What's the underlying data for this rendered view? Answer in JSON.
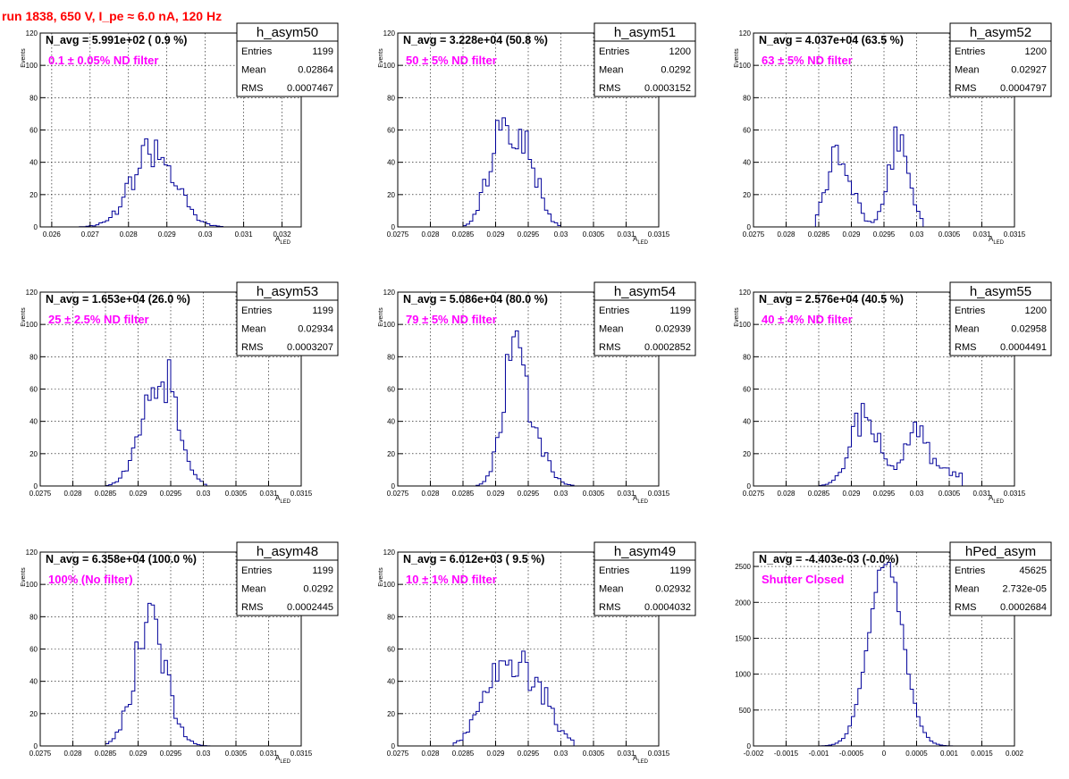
{
  "run_title": "run 1838,   650 V, I_pe ≈ 6.0 nA, 120 Hz",
  "colors": {
    "title": "#ff0000",
    "note": "#ff00ff",
    "hist": "#000099",
    "grid": "#000000",
    "frame": "#000000"
  },
  "chart_data": [
    {
      "type": "histogram",
      "name": "h_asym50",
      "navg": "N_avg = 5.991e+02 ( 0.9 %)",
      "note": "0.1 ± 0.05% ND filter",
      "stats": [
        [
          "Entries",
          "1199"
        ],
        [
          "Mean",
          "0.02864"
        ],
        [
          "RMS",
          "0.0007467"
        ]
      ],
      "ylabel": "Events",
      "xlabel": "A",
      "xlabel_sub": "LED",
      "xlim": [
        0.0257,
        0.0325
      ],
      "ylim": [
        0,
        120
      ],
      "xticks": [
        0.026,
        0.027,
        0.028,
        0.029,
        0.03,
        0.031,
        0.032
      ],
      "xticklabels": [
        "0.026",
        "0.027",
        "0.028",
        "0.029",
        "0.03",
        "0.031",
        "0.032"
      ],
      "yticks": [
        0,
        20,
        40,
        60,
        80,
        100,
        120
      ],
      "yticklabels": [
        "0",
        "20",
        "40",
        "60",
        "80",
        "100",
        "120"
      ],
      "shape": {
        "peaks": [
          [
            0.02865,
            0.00055,
            48,
            0.3
          ]
        ],
        "range": [
          0.0267,
          0.0305
        ]
      }
    },
    {
      "type": "histogram",
      "name": "h_asym51",
      "navg": "N_avg = 3.228e+04 (50.8 %)",
      "note": "50 ± 5% ND filter",
      "stats": [
        [
          "Entries",
          "1200"
        ],
        [
          "Mean",
          "0.0292"
        ],
        [
          "RMS",
          "0.0003152"
        ]
      ],
      "ylabel": "Events",
      "xlabel": "A",
      "xlabel_sub": "LED",
      "xlim": [
        0.0275,
        0.0315
      ],
      "ylim": [
        0,
        120
      ],
      "xticks": [
        0.0275,
        0.028,
        0.0285,
        0.029,
        0.0295,
        0.03,
        0.0305,
        0.031,
        0.0315
      ],
      "xticklabels": [
        "0.0275",
        "0.028",
        "0.0285",
        "0.029",
        "0.0295",
        "0.03",
        "0.0305",
        "0.031",
        "0.0315"
      ],
      "yticks": [
        0,
        20,
        40,
        60,
        80,
        100,
        120
      ],
      "yticklabels": [
        "0",
        "20",
        "40",
        "60",
        "80",
        "100",
        "120"
      ],
      "shape": {
        "peaks": [
          [
            0.02905,
            0.00018,
            54,
            0.3
          ],
          [
            0.02948,
            0.00018,
            46,
            0.3
          ]
        ],
        "range": [
          0.0285,
          0.03
        ]
      }
    },
    {
      "type": "histogram",
      "name": "h_asym52",
      "navg": "N_avg = 4.037e+04 (63.5 %)",
      "note": "63 ± 5% ND filter",
      "stats": [
        [
          "Entries",
          "1200"
        ],
        [
          "Mean",
          "0.02927"
        ],
        [
          "RMS",
          "0.0004797"
        ]
      ],
      "ylabel": "Events",
      "xlabel": "A",
      "xlabel_sub": "LED",
      "xlim": [
        0.0275,
        0.0315
      ],
      "ylim": [
        0,
        120
      ],
      "xticks": [
        0.0275,
        0.028,
        0.0285,
        0.029,
        0.0295,
        0.03,
        0.0305,
        0.031,
        0.0315
      ],
      "xticklabels": [
        "0.0275",
        "0.028",
        "0.0285",
        "0.029",
        "0.0295",
        "0.03",
        "0.0305",
        "0.031",
        "0.0315"
      ],
      "yticks": [
        0,
        20,
        40,
        60,
        80,
        100,
        120
      ],
      "yticklabels": [
        "0",
        "20",
        "40",
        "60",
        "80",
        "100",
        "120"
      ],
      "shape": {
        "peaks": [
          [
            0.02882,
            0.00018,
            50,
            0.25
          ],
          [
            0.02973,
            0.00016,
            53,
            0.25
          ]
        ],
        "range": [
          0.02845,
          0.0301
        ]
      }
    },
    {
      "type": "histogram",
      "name": "h_asym53",
      "navg": "N_avg = 1.653e+04 (26.0 %)",
      "note": "25 ± 2.5% ND filter",
      "stats": [
        [
          "Entries",
          "1199"
        ],
        [
          "Mean",
          "0.02934"
        ],
        [
          "RMS",
          "0.0003207"
        ]
      ],
      "ylabel": "Events",
      "xlabel": "A",
      "xlabel_sub": "LED",
      "xlim": [
        0.0275,
        0.0315
      ],
      "ylim": [
        0,
        120
      ],
      "xticks": [
        0.0275,
        0.028,
        0.0285,
        0.029,
        0.0295,
        0.03,
        0.0305,
        0.031,
        0.0315
      ],
      "xticklabels": [
        "0.0275",
        "0.028",
        "0.0285",
        "0.029",
        "0.0295",
        "0.03",
        "0.0305",
        "0.031",
        "0.0315"
      ],
      "yticks": [
        0,
        20,
        40,
        60,
        80,
        100,
        120
      ],
      "yticklabels": [
        "0",
        "20",
        "40",
        "60",
        "80",
        "100",
        "120"
      ],
      "shape": {
        "peaks": [
          [
            0.02915,
            0.0002,
            46,
            0.3
          ],
          [
            0.02953,
            0.00018,
            52,
            0.3
          ]
        ],
        "range": [
          0.0285,
          0.03005
        ]
      }
    },
    {
      "type": "histogram",
      "name": "h_asym54",
      "navg": "N_avg = 5.086e+04 (80.0 %)",
      "note": "79 ± 5% ND filter",
      "stats": [
        [
          "Entries",
          "1199"
        ],
        [
          "Mean",
          "0.02939"
        ],
        [
          "RMS",
          "0.0002852"
        ]
      ],
      "ylabel": "Events",
      "xlabel": "A",
      "xlabel_sub": "LED",
      "xlim": [
        0.0275,
        0.0315
      ],
      "ylim": [
        0,
        120
      ],
      "xticks": [
        0.0275,
        0.028,
        0.0285,
        0.029,
        0.0295,
        0.03,
        0.0305,
        0.031,
        0.0315
      ],
      "xticklabels": [
        "0.0275",
        "0.028",
        "0.0285",
        "0.029",
        "0.0295",
        "0.03",
        "0.0305",
        "0.031",
        "0.0315"
      ],
      "yticks": [
        0,
        20,
        40,
        60,
        80,
        100,
        120
      ],
      "yticklabels": [
        "0",
        "20",
        "40",
        "60",
        "80",
        "100",
        "120"
      ],
      "shape": {
        "peaks": [
          [
            0.02927,
            0.00017,
            78,
            0.25
          ],
          [
            0.02962,
            0.0002,
            22,
            0.3
          ]
        ],
        "range": [
          0.0287,
          0.0302
        ]
      }
    },
    {
      "type": "histogram",
      "name": "h_asym55",
      "navg": "N_avg = 2.576e+04 (40.5 %)",
      "note": "40 ± 4% ND filter",
      "stats": [
        [
          "Entries",
          "1200"
        ],
        [
          "Mean",
          "0.02958"
        ],
        [
          "RMS",
          "0.0004491"
        ]
      ],
      "ylabel": "Events",
      "xlabel": "A",
      "xlabel_sub": "LED",
      "xlim": [
        0.0275,
        0.0315
      ],
      "ylim": [
        0,
        120
      ],
      "xticks": [
        0.0275,
        0.028,
        0.0285,
        0.029,
        0.0295,
        0.03,
        0.0305,
        0.031,
        0.0315
      ],
      "xticklabels": [
        "0.0275",
        "0.028",
        "0.0285",
        "0.029",
        "0.0295",
        "0.03",
        "0.0305",
        "0.031",
        "0.0315"
      ],
      "yticks": [
        0,
        20,
        40,
        60,
        80,
        100,
        120
      ],
      "yticklabels": [
        "0",
        "20",
        "40",
        "60",
        "80",
        "100",
        "120"
      ],
      "shape": {
        "peaks": [
          [
            0.02922,
            0.00022,
            44,
            0.3
          ],
          [
            0.03,
            0.00018,
            38,
            0.3
          ],
          [
            0.03055,
            0.0002,
            8,
            0.3
          ]
        ],
        "range": [
          0.0285,
          0.0307
        ]
      }
    },
    {
      "type": "histogram",
      "name": "h_asym48",
      "navg": "N_avg = 6.358e+04 (100.0 %)",
      "note": "100% (No filter)",
      "stats": [
        [
          "Entries",
          "1199"
        ],
        [
          "Mean",
          "0.0292"
        ],
        [
          "RMS",
          "0.0002445"
        ]
      ],
      "ylabel": "Events",
      "xlabel": "A",
      "xlabel_sub": "LED",
      "xlim": [
        0.0275,
        0.0315
      ],
      "ylim": [
        0,
        120
      ],
      "xticks": [
        0.0275,
        0.028,
        0.0285,
        0.029,
        0.0295,
        0.03,
        0.0305,
        0.031,
        0.0315
      ],
      "xticklabels": [
        "0.0275",
        "0.028",
        "0.0285",
        "0.029",
        "0.0295",
        "0.03",
        "0.0305",
        "0.031",
        "0.0315"
      ],
      "yticks": [
        0,
        20,
        40,
        60,
        80,
        100,
        120
      ],
      "yticklabels": [
        "0",
        "20",
        "40",
        "60",
        "80",
        "100",
        "120"
      ],
      "shape": {
        "peaks": [
          [
            0.02919,
            0.00024,
            80,
            0.25
          ]
        ],
        "range": [
          0.0285,
          0.0301
        ]
      }
    },
    {
      "type": "histogram",
      "name": "h_asym49",
      "navg": "N_avg = 6.012e+03 ( 9.5 %)",
      "note": "10 ± 1% ND filter",
      "stats": [
        [
          "Entries",
          "1199"
        ],
        [
          "Mean",
          "0.02932"
        ],
        [
          "RMS",
          "0.0004032"
        ]
      ],
      "ylabel": "Events",
      "xlabel": "A",
      "xlabel_sub": "LED",
      "xlim": [
        0.0275,
        0.0315
      ],
      "ylim": [
        0,
        120
      ],
      "xticks": [
        0.0275,
        0.028,
        0.0285,
        0.029,
        0.0295,
        0.03,
        0.0305,
        0.031,
        0.0315
      ],
      "xticklabels": [
        "0.0275",
        "0.028",
        "0.0285",
        "0.029",
        "0.0295",
        "0.03",
        "0.0305",
        "0.031",
        "0.0315"
      ],
      "yticks": [
        0,
        20,
        40,
        60,
        80,
        100,
        120
      ],
      "yticklabels": [
        "0",
        "20",
        "40",
        "60",
        "80",
        "100",
        "120"
      ],
      "shape": {
        "peaks": [
          [
            0.02905,
            0.00028,
            40,
            0.3
          ],
          [
            0.02955,
            0.00028,
            38,
            0.3
          ]
        ],
        "range": [
          0.02835,
          0.0302
        ]
      }
    },
    {
      "type": "histogram",
      "name": "hPed_asym",
      "navg": "N_avg = -4.403e-03 (-0.0%)",
      "note": "Shutter Closed",
      "stats": [
        [
          "Entries",
          "45625"
        ],
        [
          "Mean",
          "2.732e-05"
        ],
        [
          "RMS",
          "0.0002684"
        ]
      ],
      "ylabel": "",
      "xlabel": "",
      "xlabel_sub": "",
      "xlim": [
        -0.002,
        0.002
      ],
      "ylim": [
        0,
        2700
      ],
      "xticks": [
        -0.002,
        -0.0015,
        -0.001,
        -0.0005,
        0,
        0.0005,
        0.001,
        0.0015,
        0.002
      ],
      "xticklabels": [
        "-0.002",
        "-0.0015",
        "-0.001",
        "-0.0005",
        "0",
        "0.0005",
        "0.001",
        "0.0015",
        "0.002"
      ],
      "yticks": [
        0,
        500,
        1000,
        1500,
        2000,
        2500
      ],
      "yticklabels": [
        "0",
        "500",
        "1000",
        "1500",
        "2000",
        "2500"
      ],
      "shape": {
        "peaks": [
          [
            2.73e-05,
            0.00026,
            2560,
            0.05
          ]
        ],
        "range": [
          -0.0011,
          0.0011
        ]
      }
    }
  ]
}
